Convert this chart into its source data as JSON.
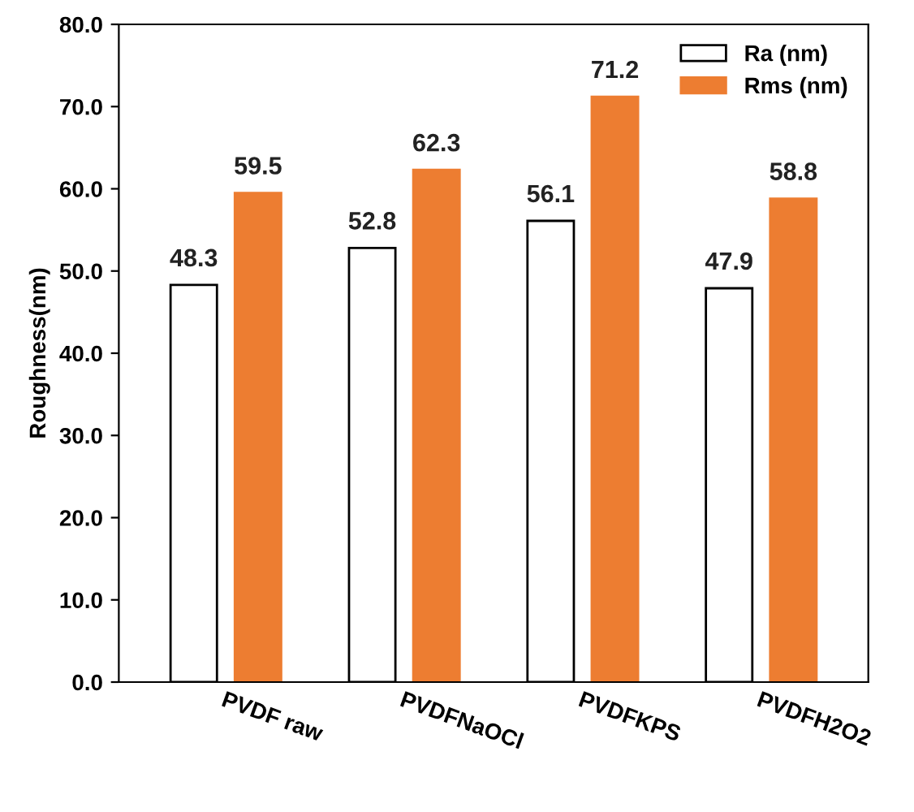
{
  "chart_data": {
    "type": "bar",
    "ylabel": "Roughness(nm)",
    "categories": [
      "PVDF raw",
      "PVDFNaOCl",
      "PVDFKPS",
      "PVDFH2O2"
    ],
    "series": [
      {
        "name": "Ra (nm)",
        "color": "#ffffff",
        "values": [
          48.3,
          52.8,
          56.1,
          47.9
        ]
      },
      {
        "name": "Rms (nm)",
        "color": "#ed7d31",
        "values": [
          59.5,
          62.3,
          71.2,
          58.8
        ]
      }
    ],
    "ylim": [
      0,
      80
    ],
    "yticks": [
      {
        "value": 0,
        "label": "0.0"
      },
      {
        "value": 10,
        "label": "10.0"
      },
      {
        "value": 20,
        "label": "20.0"
      },
      {
        "value": 30,
        "label": "30.0"
      },
      {
        "value": 40,
        "label": "40.0"
      },
      {
        "value": 50,
        "label": "50.0"
      },
      {
        "value": 60,
        "label": "60.0"
      },
      {
        "value": 70,
        "label": "70.0"
      },
      {
        "value": 80,
        "label": "80.0"
      }
    ],
    "data_labels": true,
    "grid": false,
    "legend": "top right"
  }
}
